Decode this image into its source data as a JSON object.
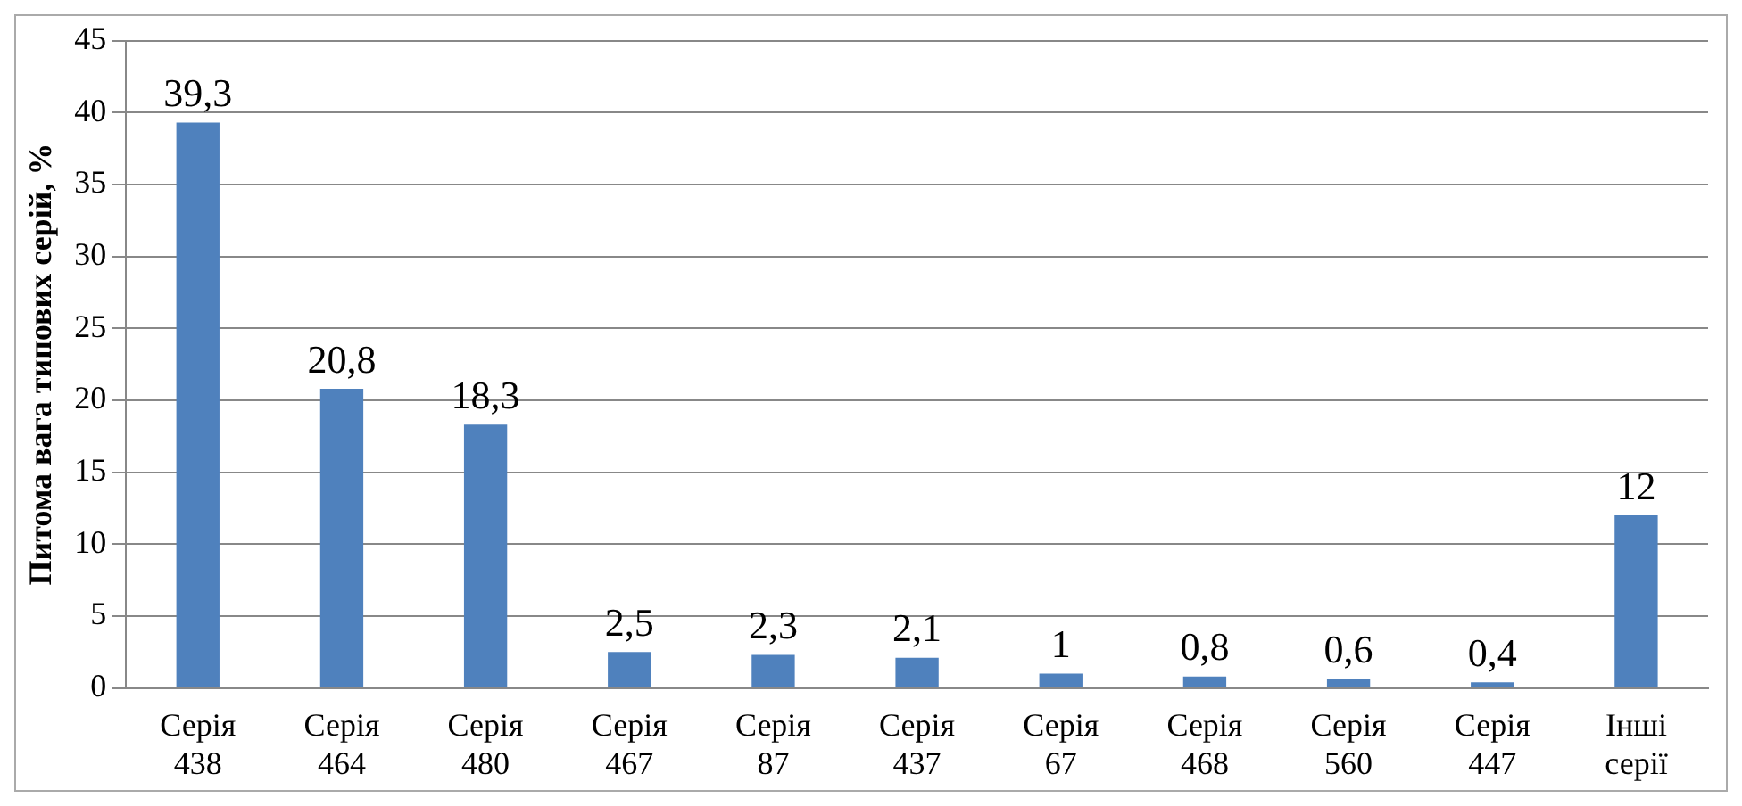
{
  "chart_data": {
    "type": "bar",
    "ylabel": "Питома вага типових серій, %",
    "categories": [
      "Серія 438",
      "Серія 464",
      "Серія 480",
      "Серія 467",
      "Серія 87",
      "Серія 437",
      "Серія 67",
      "Серія 468",
      "Серія 560",
      "Серія 447",
      "Інші серії"
    ],
    "values": [
      39.3,
      20.8,
      18.3,
      2.5,
      2.3,
      2.1,
      1,
      0.8,
      0.6,
      0.4,
      12
    ],
    "value_labels": [
      "39,3",
      "20,8",
      "18,3",
      "2,5",
      "2,3",
      "2,1",
      "1",
      "0,8",
      "0,6",
      "0,4",
      "12"
    ],
    "color": "#4f81bd",
    "ylim": [
      0,
      45
    ],
    "yticks": [
      0,
      5,
      10,
      15,
      20,
      25,
      30,
      35,
      40,
      45
    ],
    "grid": "y",
    "legend": false
  }
}
